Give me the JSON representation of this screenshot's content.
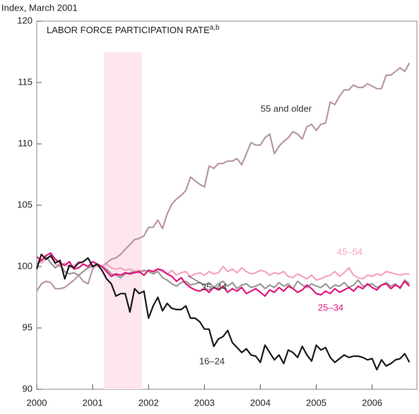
{
  "chart_data": {
    "type": "line",
    "title": "LABOR FORCE PARTICIPATION RATE",
    "title_superscript": "a,b",
    "y_label": "Index, March 2001",
    "shading": {
      "x": [
        2001.2,
        2001.88
      ],
      "top": 117.5,
      "color": "#fde6ee"
    },
    "x": [
      2000,
      2000.083,
      2000.167,
      2000.25,
      2000.333,
      2000.417,
      2000.5,
      2000.583,
      2000.667,
      2000.75,
      2000.833,
      2000.917,
      2001,
      2001.083,
      2001.167,
      2001.25,
      2001.333,
      2001.417,
      2001.5,
      2001.583,
      2001.667,
      2001.75,
      2001.833,
      2001.917,
      2002,
      2002.083,
      2002.167,
      2002.25,
      2002.333,
      2002.417,
      2002.5,
      2002.583,
      2002.667,
      2002.75,
      2002.833,
      2002.917,
      2003,
      2003.083,
      2003.167,
      2003.25,
      2003.333,
      2003.417,
      2003.5,
      2003.583,
      2003.667,
      2003.75,
      2003.833,
      2003.917,
      2004,
      2004.083,
      2004.167,
      2004.25,
      2004.333,
      2004.417,
      2004.5,
      2004.583,
      2004.667,
      2004.75,
      2004.833,
      2004.917,
      2005,
      2005.083,
      2005.167,
      2005.25,
      2005.333,
      2005.417,
      2005.5,
      2005.583,
      2005.667,
      2005.75,
      2005.833,
      2005.917,
      2006,
      2006.083,
      2006.167,
      2006.25,
      2006.333,
      2006.417,
      2006.5,
      2006.583,
      2006.667
    ],
    "series": [
      {
        "name": "55 and older",
        "color": "#b996a8",
        "values": [
          98.0,
          98.6,
          98.8,
          98.7,
          98.2,
          98.2,
          98.3,
          98.6,
          98.9,
          99.3,
          98.8,
          98.6,
          99.8,
          100.2,
          100.0,
          100.3,
          100.6,
          100.7,
          101.0,
          101.4,
          101.8,
          102.2,
          102.3,
          102.5,
          103.2,
          103.2,
          103.8,
          103.1,
          104.3,
          105.1,
          105.5,
          105.8,
          106.2,
          107.3,
          107.0,
          106.7,
          106.5,
          108.2,
          108.0,
          108.4,
          108.4,
          108.6,
          108.6,
          108.8,
          108.3,
          109.2,
          110.1,
          109.9,
          109.9,
          110.5,
          110.8,
          109.2,
          109.8,
          110.2,
          110.5,
          111.0,
          110.8,
          110.4,
          111.4,
          111.6,
          111.1,
          111.6,
          111.7,
          113.4,
          113.2,
          113.9,
          114.4,
          114.4,
          114.8,
          114.6,
          114.6,
          114.9,
          114.7,
          114.5,
          114.5,
          115.6,
          115.6,
          115.9,
          116.2,
          115.9,
          116.6
        ]
      },
      {
        "name": "45–54",
        "color": "#f5a3c3",
        "values": [
          100.5,
          100.3,
          100.6,
          100.8,
          100.2,
          100.0,
          100.3,
          99.9,
          100.1,
          100.4,
          100.2,
          100.0,
          100.1,
          100.0,
          100.0,
          100.2,
          99.9,
          99.8,
          99.9,
          99.7,
          99.8,
          99.6,
          99.7,
          99.6,
          99.7,
          99.5,
          99.8,
          99.6,
          99.4,
          99.7,
          99.3,
          99.5,
          99.6,
          99.2,
          99.4,
          99.5,
          99.3,
          99.6,
          99.4,
          99.5,
          100.0,
          99.6,
          99.8,
          99.5,
          99.9,
          99.6,
          99.4,
          99.5,
          99.7,
          99.6,
          99.3,
          99.5,
          99.4,
          99.6,
          99.2,
          99.1,
          99.4,
          99.2,
          99.0,
          99.3,
          98.9,
          99.0,
          99.2,
          99.3,
          99.6,
          99.2,
          99.5,
          99.9,
          99.3,
          99.1,
          99.0,
          99.3,
          99.2,
          99.4,
          99.3,
          99.6,
          99.5,
          99.4,
          99.3,
          99.4,
          99.4
        ]
      },
      {
        "name": "35–44",
        "color": "#9a9a9a",
        "values": [
          100.2,
          100.5,
          100.8,
          100.3,
          99.9,
          100.2,
          99.6,
          99.4,
          99.5,
          99.3,
          99.6,
          99.9,
          100.0,
          100.2,
          100.0,
          99.8,
          99.4,
          99.3,
          99.1,
          99.4,
          99.5,
          99.6,
          99.5,
          99.7,
          99.6,
          99.4,
          99.6,
          99.1,
          98.9,
          98.6,
          98.4,
          98.7,
          98.8,
          98.5,
          98.6,
          98.7,
          98.5,
          98.7,
          98.3,
          98.6,
          98.8,
          98.4,
          98.7,
          98.2,
          98.5,
          98.6,
          98.3,
          98.4,
          98.6,
          98.2,
          98.5,
          98.3,
          98.7,
          98.4,
          98.6,
          98.2,
          98.8,
          98.5,
          98.3,
          98.6,
          98.4,
          98.3,
          98.6,
          98.2,
          98.5,
          98.4,
          98.7,
          98.3,
          98.5,
          98.9,
          98.4,
          98.5,
          98.6,
          98.3,
          98.5,
          98.7,
          98.4,
          98.6,
          98.2,
          98.9,
          98.6
        ]
      },
      {
        "name": "25–34",
        "color": "#e0187f",
        "values": [
          100.8,
          100.5,
          100.9,
          101.1,
          100.6,
          100.3,
          100.1,
          100.4,
          99.8,
          99.9,
          100.2,
          100.0,
          100.4,
          100.2,
          100.0,
          99.6,
          99.2,
          99.4,
          99.3,
          99.5,
          99.4,
          99.5,
          99.6,
          99.3,
          99.7,
          99.6,
          99.8,
          99.7,
          99.4,
          99.2,
          98.8,
          99.1,
          98.6,
          98.3,
          98.1,
          98.0,
          98.2,
          97.9,
          98.3,
          98.1,
          98.4,
          97.9,
          98.2,
          98.0,
          98.3,
          97.8,
          98.0,
          98.2,
          97.9,
          97.6,
          98.1,
          97.9,
          98.3,
          98.0,
          98.4,
          98.2,
          97.9,
          98.1,
          98.5,
          98.2,
          97.8,
          97.7,
          98.0,
          97.8,
          98.2,
          97.9,
          98.1,
          98.3,
          98.0,
          98.4,
          98.2,
          98.6,
          98.3,
          98.1,
          98.5,
          98.6,
          98.2,
          98.5,
          98.3,
          98.8,
          98.4
        ]
      },
      {
        "name": "16–24",
        "color": "#1a1a1a",
        "values": [
          99.8,
          101.0,
          100.6,
          100.9,
          100.3,
          100.5,
          99.0,
          100.1,
          99.9,
          100.3,
          100.4,
          100.7,
          100.0,
          100.2,
          99.7,
          99.0,
          98.6,
          97.6,
          97.8,
          97.8,
          96.3,
          98.2,
          97.8,
          98.0,
          95.8,
          96.8,
          97.5,
          96.4,
          97.0,
          96.6,
          96.5,
          96.5,
          96.8,
          95.8,
          95.8,
          95.5,
          94.9,
          94.9,
          93.5,
          94.1,
          94.3,
          94.8,
          93.8,
          93.4,
          93.0,
          93.3,
          92.8,
          92.7,
          92.2,
          93.6,
          93.0,
          92.4,
          92.8,
          92.1,
          93.2,
          93.0,
          92.6,
          93.5,
          92.8,
          92.3,
          93.6,
          93.2,
          93.4,
          92.6,
          92.2,
          92.5,
          92.8,
          92.6,
          92.7,
          92.7,
          92.6,
          92.4,
          92.5,
          91.6,
          92.4,
          91.9,
          92.1,
          92.4,
          92.5,
          92.9,
          92.2
        ]
      }
    ],
    "xlim": [
      2000,
      2006.8
    ],
    "xticks": [
      2000,
      2001,
      2002,
      2003,
      2004,
      2005,
      2006
    ],
    "ylim": [
      90,
      120
    ],
    "yticks": [
      90,
      95,
      100,
      105,
      110,
      115,
      120
    ]
  }
}
